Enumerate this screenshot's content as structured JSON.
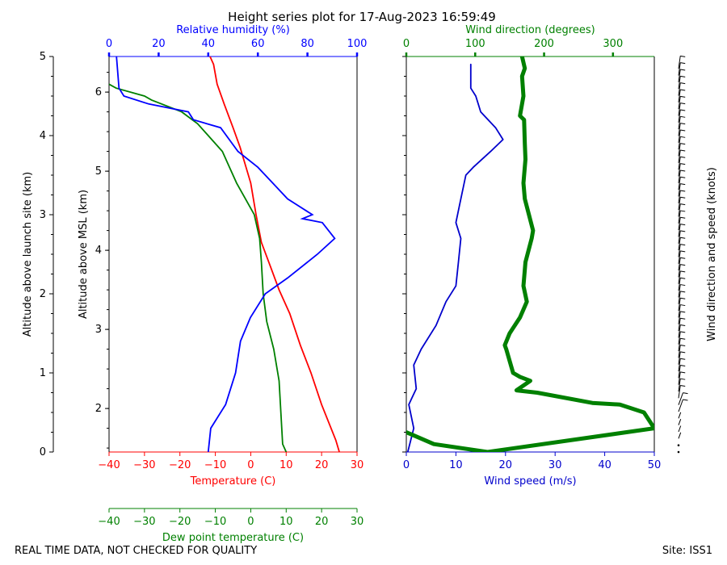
{
  "header": {
    "title": "Height series plot for 17-Aug-2023 16:59:49",
    "footer_left": "REAL TIME DATA, NOT CHECKED FOR QUALITY",
    "footer_right": "Site: ISS1"
  },
  "colors": {
    "temperature": "#ff0000",
    "dewpoint": "#008000",
    "humidity": "#0000ff",
    "wind_speed": "#0000cc",
    "wind_direction": "#008000",
    "barbs": "#000000"
  },
  "chart_data": [
    {
      "type": "line",
      "panel": "thermodynamics",
      "xlabel": "Temperature (C)",
      "xlim": [
        -40,
        30
      ],
      "x_ticks": [
        -40,
        -30,
        -20,
        -10,
        0,
        10,
        20,
        30
      ],
      "x2label": "Relative humidity (%)",
      "x2lim": [
        0,
        100
      ],
      "x2_ticks": [
        0,
        20,
        40,
        60,
        80,
        100
      ],
      "x3label": "Dew point temperature (C)",
      "x3lim": [
        -40,
        30
      ],
      "x3_ticks": [
        -40,
        -30,
        -20,
        -10,
        0,
        10,
        20,
        30
      ],
      "ylabel_left": "Altitude above launch site (km)",
      "ylim_left": [
        0,
        5
      ],
      "y_ticks_left": [
        0,
        1,
        2,
        3,
        4,
        5
      ],
      "ylabel_inner": "Altitude above MSL (km)",
      "ylim_inner": [
        1.45,
        6.45
      ],
      "y_ticks_inner": [
        2,
        3,
        4,
        5,
        6
      ],
      "grid": false,
      "series": [
        {
          "key": "temperature",
          "axis": "x",
          "points": [
            [
              25,
              0
            ],
            [
              24,
              0.15
            ],
            [
              20,
              0.6
            ],
            [
              17,
              1.0
            ],
            [
              14,
              1.35
            ],
            [
              11,
              1.75
            ],
            [
              8,
              2.05
            ],
            [
              5.5,
              2.35
            ],
            [
              3,
              2.65
            ],
            [
              1.5,
              3.0
            ],
            [
              0,
              3.4
            ],
            [
              -3,
              3.85
            ],
            [
              -5,
              4.1
            ],
            [
              -7.5,
              4.4
            ],
            [
              -9.5,
              4.65
            ],
            [
              -10.5,
              4.9
            ],
            [
              -11.5,
              5.0
            ]
          ]
        },
        {
          "key": "dewpoint",
          "axis": "x3",
          "points": [
            [
              10,
              0
            ],
            [
              9,
              0.1
            ],
            [
              8.5,
              0.5
            ],
            [
              8,
              0.9
            ],
            [
              6.5,
              1.3
            ],
            [
              4.5,
              1.65
            ],
            [
              3.5,
              2.0
            ],
            [
              3,
              2.4
            ],
            [
              2.5,
              2.7
            ],
            [
              1,
              3.0
            ],
            [
              -1.5,
              3.2
            ],
            [
              -4,
              3.4
            ],
            [
              -6,
              3.6
            ],
            [
              -8,
              3.8
            ],
            [
              -12,
              4.0
            ],
            [
              -15,
              4.15
            ],
            [
              -19.5,
              4.3
            ],
            [
              -28,
              4.45
            ],
            [
              -30,
              4.5
            ],
            [
              -38,
              4.6
            ],
            [
              -40,
              4.65
            ]
          ]
        },
        {
          "key": "humidity",
          "axis": "x2",
          "points": [
            [
              40,
              0
            ],
            [
              41,
              0.3
            ],
            [
              47,
              0.6
            ],
            [
              51,
              1.0
            ],
            [
              53,
              1.4
            ],
            [
              57,
              1.7
            ],
            [
              63,
              2.0
            ],
            [
              72,
              2.2
            ],
            [
              84,
              2.5
            ],
            [
              91,
              2.7
            ],
            [
              86,
              2.9
            ],
            [
              78,
              2.95
            ],
            [
              82,
              3.0
            ],
            [
              72,
              3.2
            ],
            [
              66,
              3.4
            ],
            [
              60,
              3.6
            ],
            [
              52,
              3.8
            ],
            [
              45,
              4.1
            ],
            [
              34,
              4.2
            ],
            [
              32,
              4.3
            ],
            [
              16,
              4.4
            ],
            [
              6,
              4.5
            ],
            [
              4,
              4.6
            ],
            [
              3,
              5.0
            ]
          ]
        }
      ]
    },
    {
      "type": "line",
      "panel": "wind",
      "xlabel": "Wind speed (m/s)",
      "xlim": [
        0,
        50
      ],
      "x_ticks": [
        0,
        10,
        20,
        30,
        40,
        50
      ],
      "x2label": "Wind direction (degrees)",
      "x2lim": [
        0,
        360
      ],
      "x2_ticks": [
        0,
        100,
        200,
        300
      ],
      "ylim": [
        0,
        5
      ],
      "y_ticks": [
        0,
        1,
        2,
        3,
        4,
        5
      ],
      "barb_label": "Wind direction and speed (knots)",
      "grid": false,
      "series": [
        {
          "key": "wind_speed",
          "axis": "x",
          "points": [
            [
              0.3,
              0
            ],
            [
              1.5,
              0.3
            ],
            [
              0.5,
              0.6
            ],
            [
              2,
              0.8
            ],
            [
              1.5,
              1.1
            ],
            [
              3,
              1.3
            ],
            [
              6,
              1.6
            ],
            [
              8,
              1.9
            ],
            [
              10,
              2.1
            ],
            [
              10.5,
              2.4
            ],
            [
              11,
              2.7
            ],
            [
              10,
              2.9
            ],
            [
              11,
              3.2
            ],
            [
              12,
              3.5
            ],
            [
              13.5,
              3.6
            ],
            [
              17,
              3.8
            ],
            [
              19.5,
              3.95
            ],
            [
              18,
              4.1
            ],
            [
              15,
              4.3
            ],
            [
              14,
              4.5
            ],
            [
              13,
              4.6
            ],
            [
              13,
              4.9
            ]
          ]
        },
        {
          "key": "wind_direction",
          "axis": "x2",
          "points": [
            [
              0,
              0.25
            ],
            [
              40,
              0.1
            ],
            [
              118,
              0.0
            ],
            [
              360,
              0.3
            ],
            [
              345,
              0.5
            ],
            [
              310,
              0.6
            ],
            [
              270,
              0.62
            ],
            [
              190,
              0.75
            ],
            [
              160,
              0.78
            ],
            [
              180,
              0.9
            ],
            [
              165,
              0.95
            ],
            [
              155,
              1.0
            ],
            [
              145,
              1.3
            ],
            [
              143,
              1.35
            ],
            [
              150,
              1.5
            ],
            [
              165,
              1.7
            ],
            [
              175,
              1.9
            ],
            [
              170,
              2.1
            ],
            [
              173,
              2.4
            ],
            [
              182,
              2.7
            ],
            [
              184,
              2.8
            ],
            [
              178,
              3.0
            ],
            [
              172,
              3.2
            ],
            [
              170,
              3.4
            ],
            [
              173,
              3.7
            ],
            [
              172,
              3.9
            ],
            [
              171,
              4.2
            ],
            [
              165,
              4.25
            ],
            [
              170,
              4.5
            ],
            [
              168,
              4.75
            ],
            [
              172,
              4.85
            ],
            [
              168,
              5.0
            ]
          ]
        }
      ]
    }
  ]
}
